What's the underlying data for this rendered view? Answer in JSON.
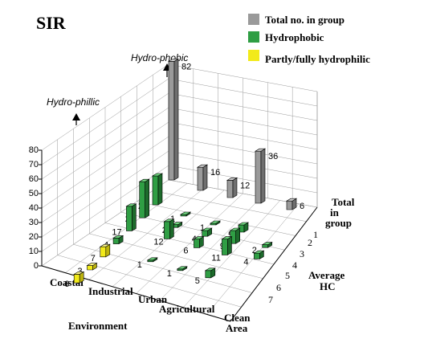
{
  "chart_data": {
    "type": "bar",
    "subtype": "3d-grid-bar",
    "title": "SIR",
    "legend": {
      "placement": "top-right",
      "entries": [
        {
          "key": "total",
          "label": "Total no. in group",
          "color": "#9a9a9a"
        },
        {
          "key": "hydrophobic",
          "label": "Hydrophobic",
          "color": "#2f9e44"
        },
        {
          "key": "hydrophilic",
          "label": "Partly/fully hydrophilic",
          "color": "#f2ea1a"
        }
      ]
    },
    "axes": {
      "environment_label": "Environment",
      "environment_categories": [
        "Coastal",
        "Industrial",
        "Urban",
        "Agricultural",
        "Clean Area"
      ],
      "hc_label": "Average HC",
      "hc_categories": [
        "1",
        "2",
        "3",
        "4",
        "5",
        "6",
        "7"
      ],
      "hc_extra_label": "Total in group",
      "z_ticks": [
        "0",
        "10",
        "20",
        "30",
        "40",
        "50",
        "60",
        "70",
        "80"
      ],
      "zlim": [
        0,
        80
      ],
      "wall_labels": {
        "back_left": "Hydro-phillic",
        "back_right": "Hydro-phobic"
      }
    },
    "grid": true,
    "series": [
      {
        "name": "Total no. in group",
        "points": [
          {
            "env": "Coastal",
            "hc": "Total in group",
            "value": 82
          },
          {
            "env": "Industrial",
            "hc": "Total in group",
            "value": 16
          },
          {
            "env": "Urban",
            "hc": "Total in group",
            "value": 12
          },
          {
            "env": "Agricultural",
            "hc": "Total in group",
            "value": 36
          },
          {
            "env": "Clean Area",
            "hc": "Total in group",
            "value": 6
          }
        ]
      },
      {
        "name": "Hydrophobic",
        "points": [
          {
            "env": "Coastal",
            "hc": "1",
            "value": 20
          },
          {
            "env": "Coastal",
            "hc": "2",
            "value": 25
          },
          {
            "env": "Coastal",
            "hc": "3",
            "value": 17
          },
          {
            "env": "Coastal",
            "hc": "4",
            "value": 4
          },
          {
            "env": "Industrial",
            "hc": "1",
            "value": 1
          },
          {
            "env": "Industrial",
            "hc": "2",
            "value": 2
          },
          {
            "env": "Industrial",
            "hc": "3",
            "value": 12
          },
          {
            "env": "Industrial",
            "hc": "5",
            "value": 1
          },
          {
            "env": "Urban",
            "hc": "1",
            "value": 1
          },
          {
            "env": "Urban",
            "hc": "2",
            "value": 4
          },
          {
            "env": "Urban",
            "hc": "3",
            "value": 6
          },
          {
            "env": "Urban",
            "hc": "5",
            "value": 1
          },
          {
            "env": "Agricultural",
            "hc": "1",
            "value": 5
          },
          {
            "env": "Agricultural",
            "hc": "2",
            "value": 9
          },
          {
            "env": "Agricultural",
            "hc": "3",
            "value": 11
          },
          {
            "env": "Agricultural",
            "hc": "5",
            "value": 5
          },
          {
            "env": "Clean Area",
            "hc": "2",
            "value": 2
          },
          {
            "env": "Clean Area",
            "hc": "3",
            "value": 4
          }
        ]
      },
      {
        "name": "Partly/fully hydrophilic",
        "points": [
          {
            "env": "Coastal",
            "hc": "5",
            "value": 7
          },
          {
            "env": "Coastal",
            "hc": "6",
            "value": 3
          },
          {
            "env": "Coastal",
            "hc": "7",
            "value": 6
          }
        ]
      }
    ]
  }
}
